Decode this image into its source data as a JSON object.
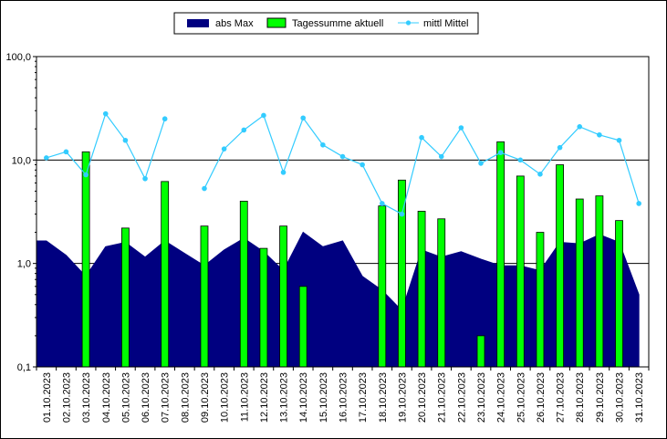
{
  "chart_data": {
    "type": "bar",
    "scale": "log",
    "ylim": [
      0.1,
      100
    ],
    "y_ticks": [
      "0,1",
      "1,0",
      "10,0",
      "100,0"
    ],
    "y_tick_values": [
      0.1,
      1,
      10,
      100
    ],
    "grid": "horizontal major lines",
    "legend_position": "top-center",
    "categories": [
      "01.10.2023",
      "02.10.2023",
      "03.10.2023",
      "04.10.2023",
      "05.10.2023",
      "06.10.2023",
      "07.10.2023",
      "08.10.2023",
      "09.10.2023",
      "10.10.2023",
      "11.10.2023",
      "12.10.2023",
      "13.10.2023",
      "14.10.2023",
      "15.10.2023",
      "16.10.2023",
      "17.10.2023",
      "18.10.2023",
      "19.10.2023",
      "20.10.2023",
      "21.10.2023",
      "22.10.2023",
      "23.10.2023",
      "24.10.2023",
      "25.10.2023",
      "26.10.2023",
      "27.10.2023",
      "28.10.2023",
      "29.10.2023",
      "30.10.2023",
      "31.10.2023"
    ],
    "series": [
      {
        "name": "abs Max",
        "kind": "area",
        "color": "#000080",
        "values": [
          1.65,
          1.2,
          0.75,
          1.45,
          1.6,
          1.15,
          1.65,
          1.25,
          0.95,
          1.35,
          1.75,
          1.3,
          0.85,
          2.0,
          1.45,
          1.65,
          0.75,
          0.55,
          0.35,
          1.35,
          1.15,
          1.3,
          1.1,
          0.95,
          0.95,
          0.85,
          1.6,
          1.55,
          1.9,
          1.6,
          0.5
        ]
      },
      {
        "name": "Tagessumme aktuell",
        "kind": "bar",
        "color": "#00FF00",
        "values": [
          null,
          null,
          12.0,
          null,
          2.2,
          null,
          6.2,
          null,
          2.3,
          null,
          4.0,
          1.4,
          2.3,
          0.6,
          null,
          null,
          null,
          3.6,
          6.4,
          3.2,
          2.7,
          null,
          0.2,
          15.0,
          7.0,
          2.0,
          9.0,
          4.2,
          4.5,
          2.6,
          null
        ]
      },
      {
        "name": "mittl Mittel",
        "kind": "line",
        "color": "#33CCFF",
        "values": [
          10.5,
          12.0,
          7.2,
          28.0,
          15.5,
          6.6,
          25.0,
          null,
          5.3,
          12.8,
          19.5,
          27.0,
          7.6,
          25.5,
          14.0,
          10.8,
          9.0,
          3.8,
          3.0,
          16.5,
          10.8,
          20.5,
          9.3,
          11.8,
          10.0,
          7.3,
          13.2,
          21.0,
          17.5,
          15.5,
          3.8
        ]
      }
    ]
  }
}
